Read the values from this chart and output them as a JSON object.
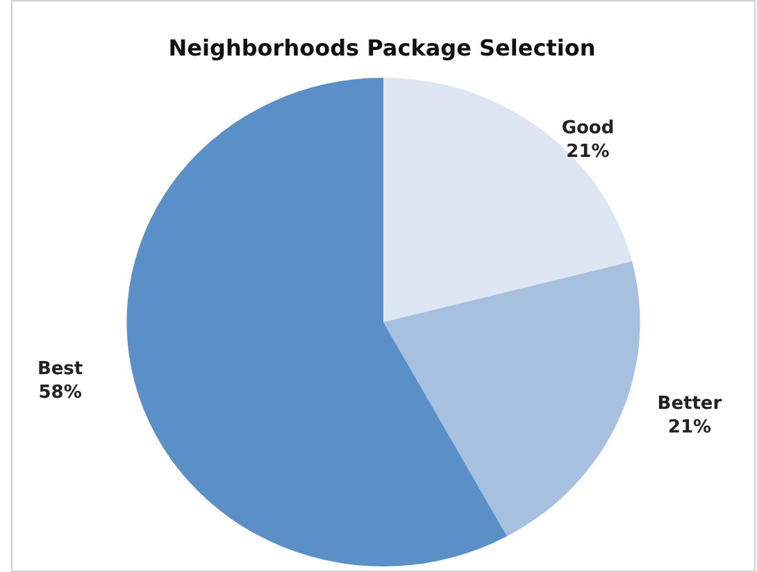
{
  "chart_data": {
    "type": "pie",
    "title": "Neighborhoods Package Selection",
    "categories": [
      "Good",
      "Better",
      "Best"
    ],
    "values": [
      21,
      21,
      58
    ],
    "colors": [
      "#dde6f2",
      "#a7c0df",
      "#5b8fc8"
    ],
    "value_labels": [
      "21%",
      "21%",
      "58%"
    ],
    "legend": false
  }
}
